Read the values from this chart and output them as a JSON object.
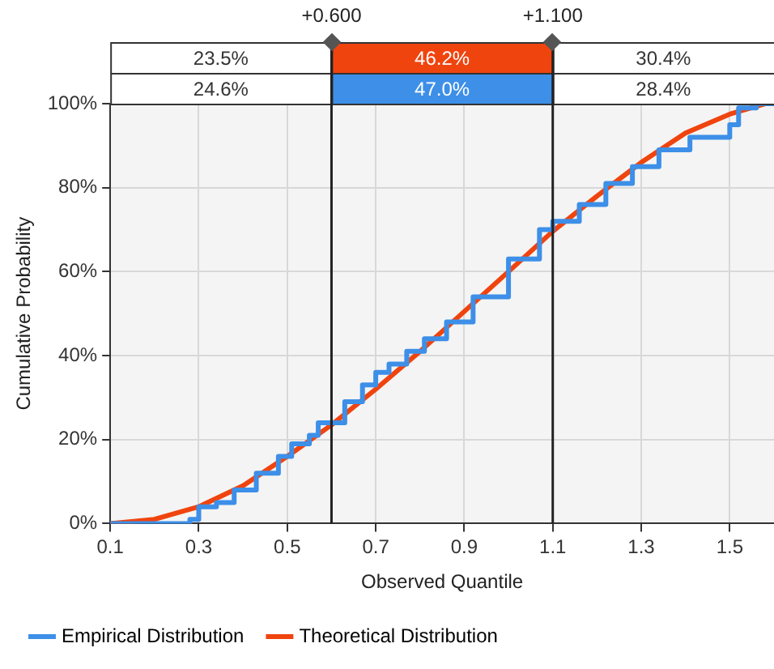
{
  "chart_data": {
    "type": "line",
    "xlabel": "Observed Quantile",
    "ylabel": "Cumulative Probability",
    "xlim": [
      0.1,
      1.6
    ],
    "xticks": [
      0.1,
      0.3,
      0.5,
      0.7,
      0.9,
      1.1,
      1.3,
      1.5
    ],
    "ylim": [
      0,
      100
    ],
    "yticks": [
      {
        "value": 0,
        "label": "0%"
      },
      {
        "value": 20,
        "label": "20%"
      },
      {
        "value": 40,
        "label": "40%"
      },
      {
        "value": 60,
        "label": "60%"
      },
      {
        "value": 80,
        "label": "80%"
      },
      {
        "value": 100,
        "label": "100%"
      }
    ],
    "series": [
      {
        "name": "Empirical Distribution",
        "type": "step",
        "color": "#3d8fe8",
        "x": [
          0.1,
          0.28,
          0.3,
          0.34,
          0.38,
          0.43,
          0.48,
          0.51,
          0.55,
          0.57,
          0.63,
          0.67,
          0.7,
          0.73,
          0.77,
          0.81,
          0.86,
          0.92,
          1.0,
          1.07,
          1.1,
          1.16,
          1.22,
          1.28,
          1.34,
          1.41,
          1.5,
          1.52,
          1.56,
          1.6
        ],
        "values": [
          0,
          0,
          1,
          4,
          5,
          8,
          12,
          16,
          19,
          21,
          24,
          29,
          33,
          36,
          38,
          41,
          44,
          48,
          54,
          63,
          70,
          72,
          76,
          81,
          85,
          89,
          92,
          95,
          99,
          100
        ]
      },
      {
        "name": "Theoretical Distribution",
        "color": "#f0440f",
        "x": [
          0.1,
          0.2,
          0.3,
          0.4,
          0.5,
          0.6,
          0.7,
          0.8,
          0.9,
          1.0,
          1.1,
          1.2,
          1.3,
          1.4,
          1.5,
          1.58
        ],
        "values": [
          0,
          1,
          4,
          9,
          16,
          23.5,
          32,
          41,
          50.5,
          60,
          69.6,
          78,
          86,
          93,
          97.5,
          100
        ]
      }
    ],
    "ref_lines": [
      {
        "axis": "x",
        "value": 0.6,
        "label": "+0.600",
        "color": "#222222"
      },
      {
        "axis": "x",
        "value": 1.1,
        "label": "+1.100",
        "color": "#222222"
      }
    ],
    "annotations": [
      "23.5%",
      "46.2%",
      "30.4%",
      "24.6%",
      "47.0%",
      "28.4%"
    ],
    "grid": true,
    "legend": "bottom left",
    "marker": "none",
    "line_style": "solid"
  }
}
